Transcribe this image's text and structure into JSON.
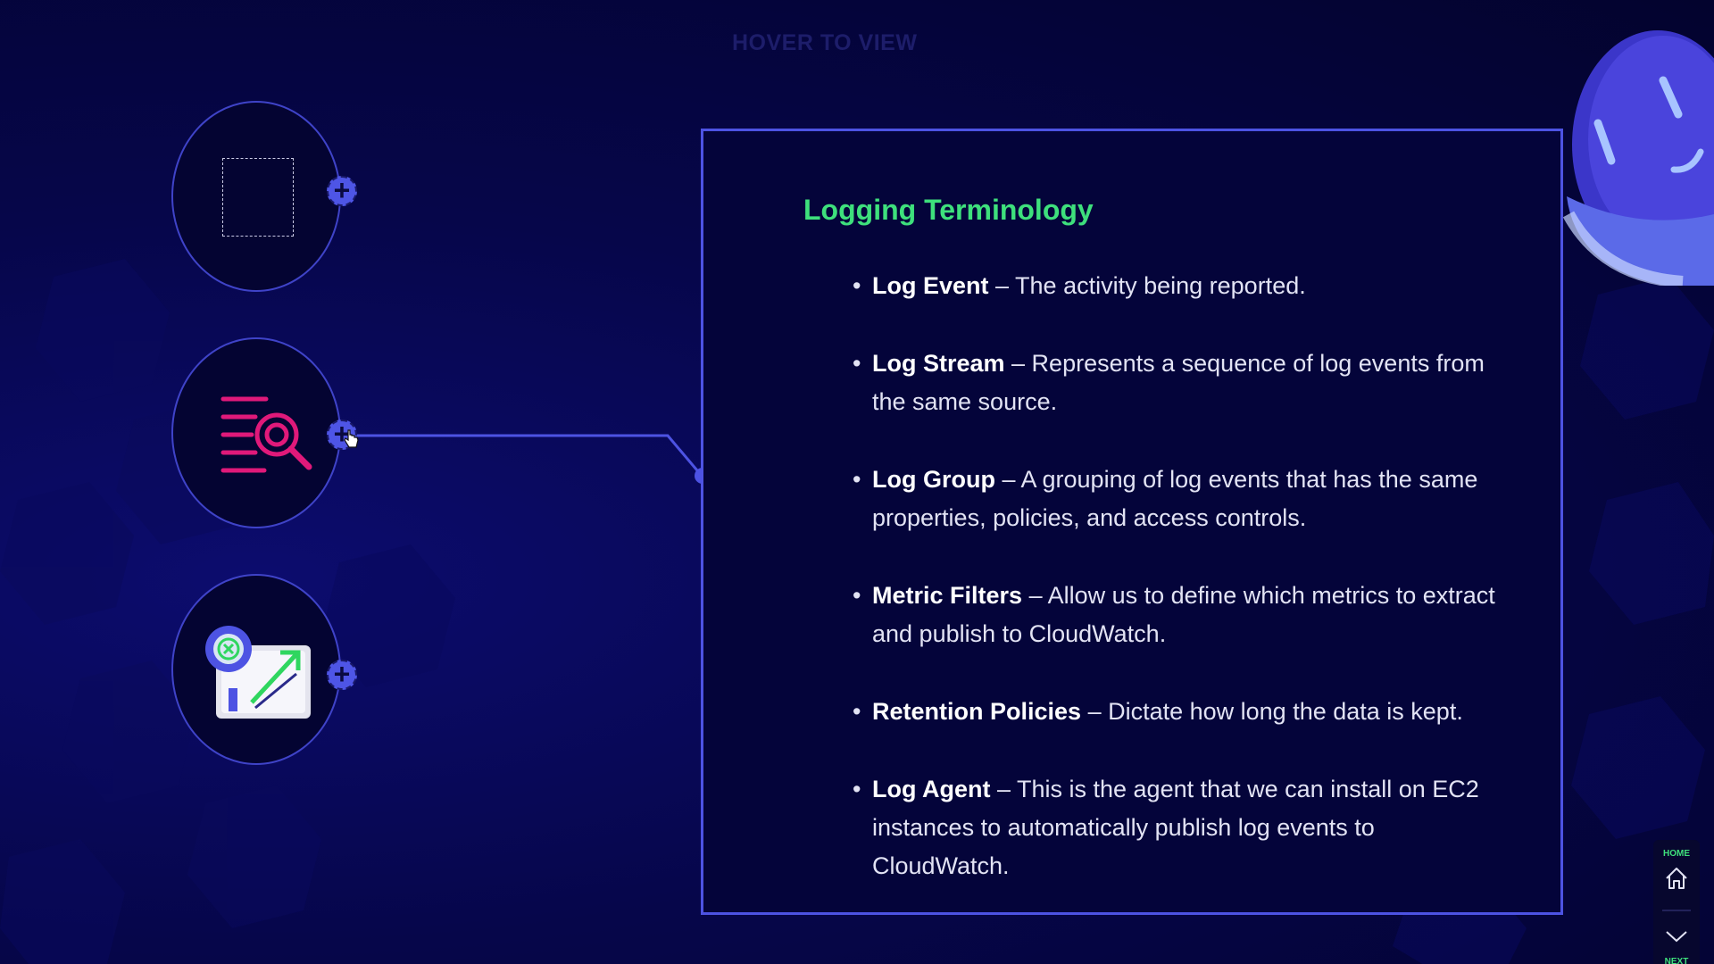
{
  "header": {
    "hover_text": "HOVER TO VIEW"
  },
  "hotspots": [
    {
      "name": "placeholder",
      "icon": "empty-placeholder-icon"
    },
    {
      "name": "log-search",
      "icon": "log-search-icon",
      "active": true
    },
    {
      "name": "metrics-chart",
      "icon": "metrics-chart-icon"
    }
  ],
  "panel": {
    "title": "Logging Terminology",
    "items": [
      {
        "term": "Log Event",
        "description": " – The activity being reported."
      },
      {
        "term": "Log Stream",
        "description": " – Represents a sequence of log events from the same source."
      },
      {
        "term": "Log Group",
        "description": " – A grouping of log events that has the same properties, policies, and access controls."
      },
      {
        "term": "Metric Filters",
        "description": " – Allow us to define which metrics to extract and publish to CloudWatch."
      },
      {
        "term": "Retention Policies",
        "description": " – Dictate how long the data is kept."
      },
      {
        "term": "Log Agent",
        "description": " – This is the agent that we can install on EC2 instances to automatically publish log events to CloudWatch."
      }
    ]
  },
  "nav": {
    "home_label": "HOME",
    "next_label": "NEXT"
  },
  "colors": {
    "background": "#04043a",
    "accent": "#4d53e3",
    "title_green": "#3ee07c",
    "icon_pink": "#e0197a",
    "icon_green": "#2fd65f"
  }
}
